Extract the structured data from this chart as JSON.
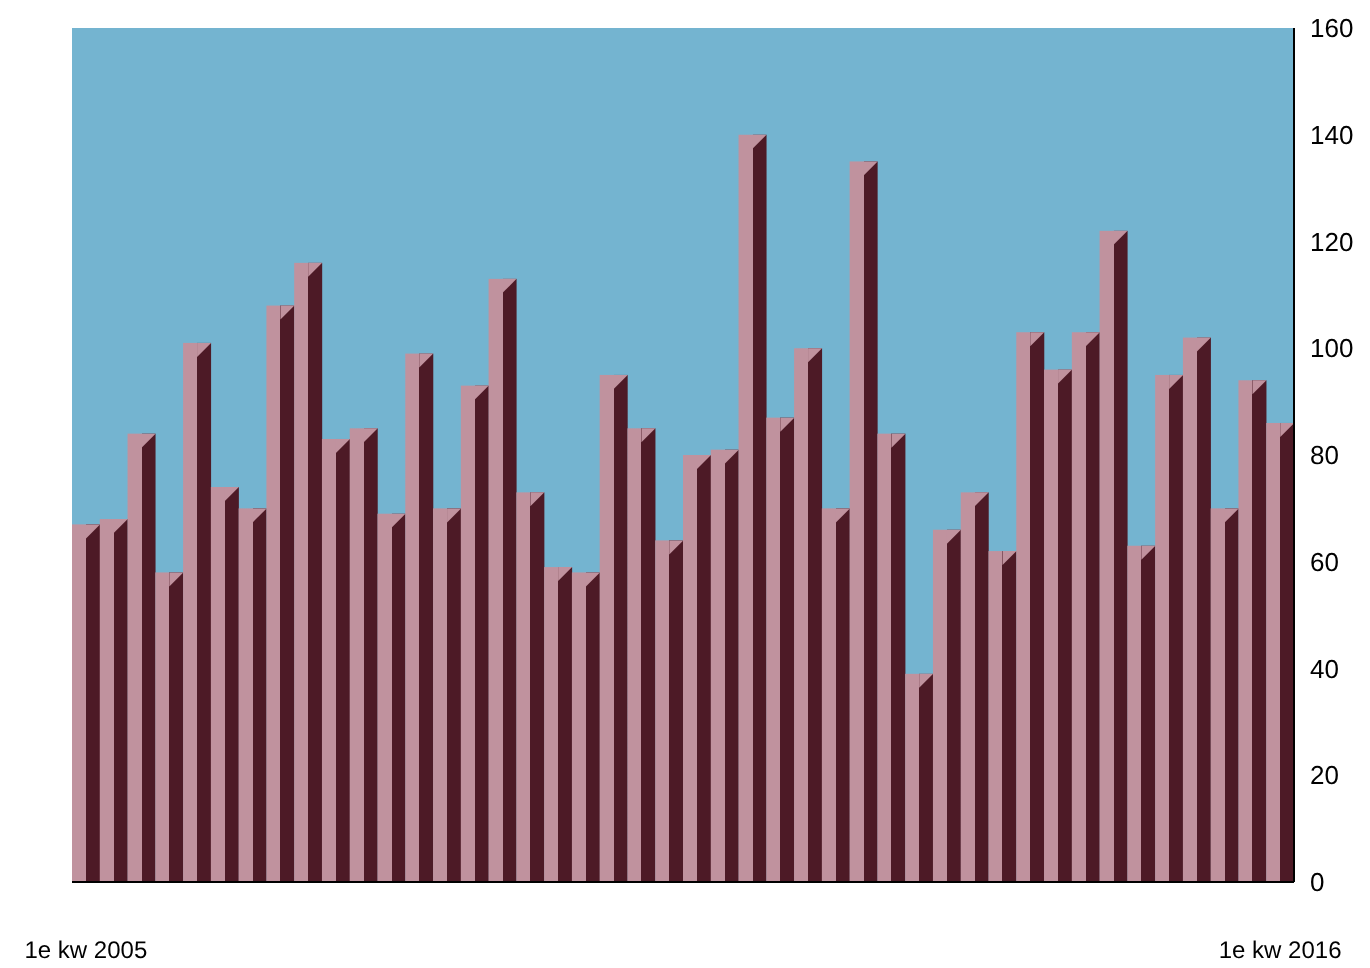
{
  "chart_data": {
    "type": "bar",
    "categories": [
      "1e kw 2005",
      null,
      null,
      null,
      null,
      null,
      null,
      null,
      null,
      null,
      null,
      null,
      null,
      null,
      null,
      null,
      null,
      null,
      null,
      null,
      null,
      null,
      null,
      null,
      null,
      null,
      null,
      null,
      null,
      null,
      null,
      null,
      null,
      null,
      null,
      null,
      null,
      null,
      null,
      null,
      null,
      null,
      null,
      "1e kw 2016"
    ],
    "series": [
      {
        "color": "#c0929e",
        "values": [
          67,
          68,
          84,
          58,
          101,
          74,
          70,
          108,
          116,
          83,
          85,
          69,
          99,
          70,
          93,
          113,
          73,
          59,
          58,
          95,
          85,
          64,
          80,
          81,
          140,
          87,
          100,
          70,
          135,
          84,
          39,
          66,
          73,
          62,
          103,
          96,
          103,
          122,
          63,
          95,
          102,
          70,
          94,
          86
        ]
      }
    ],
    "ylim": [
      0,
      160
    ],
    "yticks": [
      0,
      20,
      40,
      60,
      80,
      100,
      120,
      140,
      160
    ],
    "grid": false,
    "legend": false
  }
}
